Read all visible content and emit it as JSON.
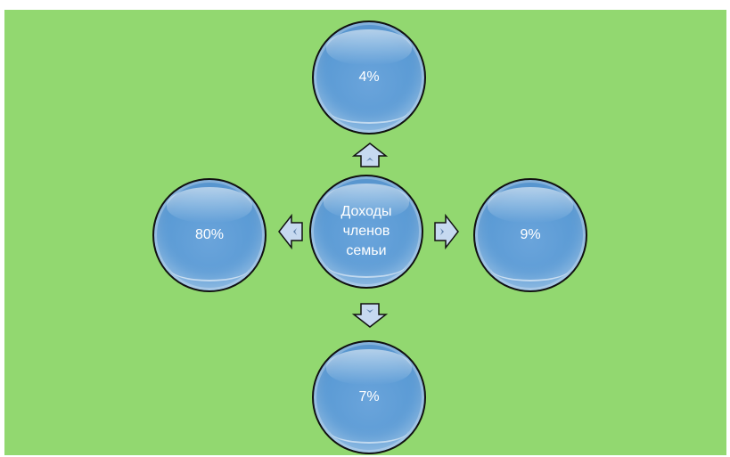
{
  "diagram": {
    "center": {
      "label": "Доходы членов семьи"
    },
    "items": {
      "top": {
        "label": "4%"
      },
      "right": {
        "label": "9%"
      },
      "bottom": {
        "label": "7%"
      },
      "left": {
        "label": "80%"
      }
    }
  },
  "colors": {
    "background": "#92d870",
    "bubble": "#5b9bd5",
    "arrow": "#c6d9f0",
    "text": "#ffffff"
  }
}
